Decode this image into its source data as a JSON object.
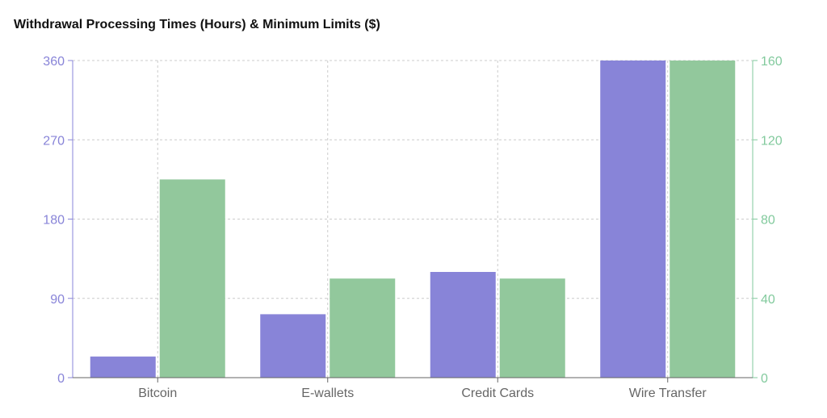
{
  "chart_data": {
    "type": "bar",
    "title": "Withdrawal Processing Times (Hours) & Minimum Limits ($)",
    "categories": [
      "Bitcoin",
      "E-wallets",
      "Credit Cards",
      "Wire Transfer"
    ],
    "series": [
      {
        "values": [
          24,
          72,
          120,
          360
        ],
        "color": "#8884d8",
        "axis": "left"
      },
      {
        "values": [
          100,
          50,
          50,
          160
        ],
        "color": "#92c89c",
        "axis": "right"
      }
    ],
    "y_left": {
      "ylim": [
        0,
        360
      ],
      "ticks": [
        "0",
        "90",
        "180",
        "270",
        "360"
      ],
      "color": "#8884d8"
    },
    "y_right": {
      "ylim": [
        0,
        160
      ],
      "ticks": [
        "0",
        "40",
        "80",
        "120",
        "160"
      ],
      "color": "#82ca9d"
    },
    "grid": true,
    "grid_color": "#cccccc",
    "axis_color": "#666666"
  }
}
